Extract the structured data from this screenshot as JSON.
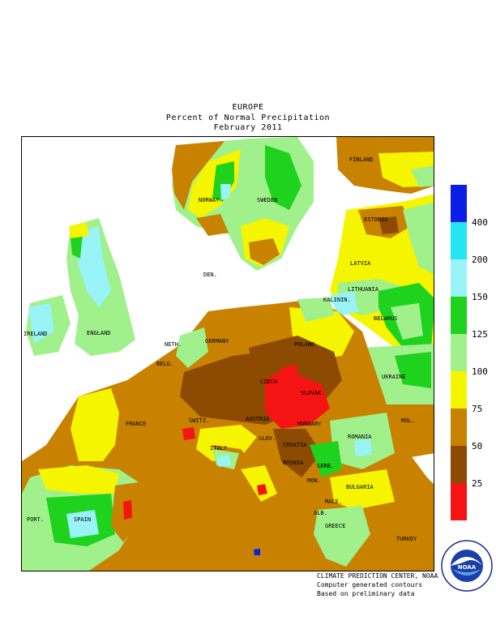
{
  "title": {
    "region": "EUROPE",
    "variable": "Percent of Normal Precipitation",
    "period": "February 2011"
  },
  "legend": {
    "bins": [
      {
        "label": "400",
        "color": "#0a1ee6"
      },
      {
        "label": "200",
        "color": "#25e6f0"
      },
      {
        "label": "150",
        "color": "#98f4f6"
      },
      {
        "label": "125",
        "color": "#1ed21e"
      },
      {
        "label": "100",
        "color": "#a0f08c"
      },
      {
        "label": "75",
        "color": "#f5f500"
      },
      {
        "label": "50",
        "color": "#c88200"
      },
      {
        "label": "25",
        "color": "#8c4b00"
      },
      {
        "label": "",
        "color": "#f51414"
      }
    ]
  },
  "map": {
    "labels": [
      {
        "key": "finland",
        "text": "FINLAND"
      },
      {
        "key": "norway",
        "text": "NORWAY"
      },
      {
        "key": "sweden",
        "text": "SWEDEN"
      },
      {
        "key": "estonia",
        "text": "ESTONIA"
      },
      {
        "key": "latvia",
        "text": "LATVIA"
      },
      {
        "key": "den",
        "text": "DEN."
      },
      {
        "key": "lithuania",
        "text": "LITHUANIA"
      },
      {
        "key": "kalinin",
        "text": "KALININ."
      },
      {
        "key": "belarus",
        "text": "BELARUS"
      },
      {
        "key": "ireland",
        "text": "IRELAND"
      },
      {
        "key": "england",
        "text": "ENGLAND"
      },
      {
        "key": "neth",
        "text": "NETH."
      },
      {
        "key": "germany",
        "text": "GERMANY"
      },
      {
        "key": "poland",
        "text": "POLAND"
      },
      {
        "key": "belg",
        "text": "BELG."
      },
      {
        "key": "czech",
        "text": "CZECH"
      },
      {
        "key": "ukraine",
        "text": "UKRAINE"
      },
      {
        "key": "slovak",
        "text": "SLOVAK."
      },
      {
        "key": "france",
        "text": "FRANCE"
      },
      {
        "key": "switz",
        "text": "SWITZ."
      },
      {
        "key": "austria",
        "text": "AUSTRIA"
      },
      {
        "key": "hungary",
        "text": "HUNGARY"
      },
      {
        "key": "mol",
        "text": "MOL."
      },
      {
        "key": "slov",
        "text": "SLOV."
      },
      {
        "key": "croatia",
        "text": "CROATIA"
      },
      {
        "key": "romania",
        "text": "ROMANIA"
      },
      {
        "key": "italy",
        "text": "ITALY"
      },
      {
        "key": "bosnia",
        "text": "BOSNIA"
      },
      {
        "key": "serb",
        "text": "SERB."
      },
      {
        "key": "mon",
        "text": "MON."
      },
      {
        "key": "bulgaria",
        "text": "BULGARIA"
      },
      {
        "key": "mace",
        "text": "MACE."
      },
      {
        "key": "port",
        "text": "PORT."
      },
      {
        "key": "spain",
        "text": "SPAIN"
      },
      {
        "key": "alb",
        "text": "ALB."
      },
      {
        "key": "greece",
        "text": "GREECE"
      },
      {
        "key": "turkey",
        "text": "TURKEY"
      }
    ]
  },
  "footer": {
    "line1": "CLIMATE PREDICTION CENTER, NOAA",
    "line2": "Computer generated contours",
    "line3": "Based on preliminary data"
  },
  "logo": {
    "center_text": "NOAA",
    "ring_text": "NATIONAL OCEANIC AND ATMOSPHERIC ADMINISTRATION · U.S. DEPARTMENT OF COMMERCE"
  }
}
